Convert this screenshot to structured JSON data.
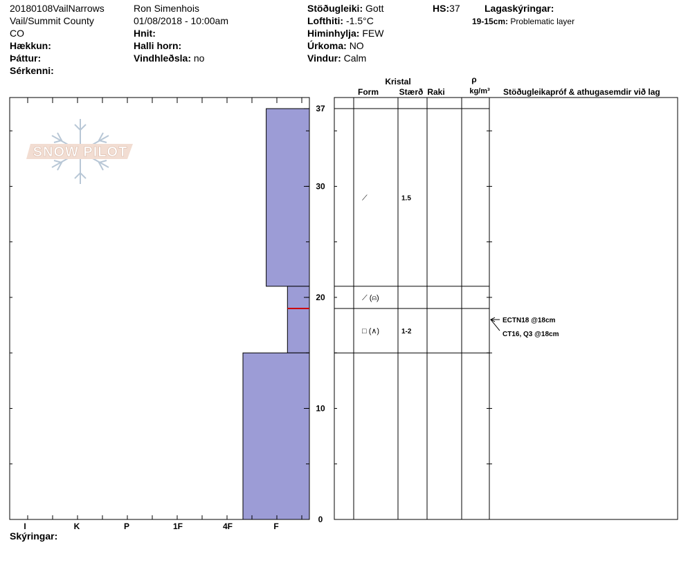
{
  "header": {
    "profile_name": "20180108VailNarrows",
    "location": "Vail/Summit County",
    "state": "CO",
    "elevation_label": "Hækkun:",
    "aspect_label": "Þáttur:",
    "features_label": "Sérkenni:",
    "observer": "Ron Simenhois",
    "datetime": "01/08/2018 - 10:00am",
    "coords_label": "Hnit:",
    "slope_label": "Halli horn:",
    "wind_loading_label": "Vindhleðsla:",
    "wind_loading_value": "no",
    "stability_label": "Stöðugleiki:",
    "stability_value": "Gott",
    "air_temp_label": "Lofthiti:",
    "air_temp_value": "-1.5°C",
    "sky_label": "Himinhylja:",
    "sky_value": "FEW",
    "precip_label": "Úrkoma:",
    "precip_value": "NO",
    "wind_label": "Vindur:",
    "wind_value": "Calm",
    "hs_label": "HS:",
    "hs_value": "37",
    "layer_notes_label": "Lagaskýringar:",
    "layer_note_range": "19-15cm:",
    "layer_note_text": "Problematic layer"
  },
  "logo": {
    "text": "SNOW PILOT"
  },
  "footer": {
    "notes_label": "Skýringar:"
  },
  "table_headers": {
    "crystal": "Kristal",
    "form": "Form",
    "size": "Stærð",
    "moisture": "Raki",
    "density_symbol": "ρ",
    "density_unit": "kg/m³",
    "tests": "Stöðugleikapróf & athugasemdir við lag"
  },
  "chart_data": {
    "type": "bar",
    "orientation": "horizontal",
    "description": "hand hardness profile by snow height",
    "xcategories": [
      "I",
      "K",
      "P",
      "1F",
      "4F",
      "F"
    ],
    "ylim": [
      0,
      37
    ],
    "y_ticks": [
      0,
      10,
      20,
      30,
      37
    ],
    "fill_color": "#9c9cd6",
    "weak_layer_color": "#cc0000",
    "layers": [
      {
        "top": 37,
        "bottom": 21,
        "hardness_index": 0.65
      },
      {
        "top": 21,
        "bottom": 15,
        "hardness_index": 0.33
      },
      {
        "top": 15,
        "bottom": 0,
        "hardness_index": 1.0
      }
    ],
    "weak_layer_height": 19,
    "boundaries": [
      37,
      21,
      19,
      15
    ],
    "crystals": [
      {
        "height": 29,
        "form": "⟋",
        "size": "1.5"
      },
      {
        "height": 20,
        "form": "⟋ (⍝)",
        "size": ""
      },
      {
        "height": 17,
        "form": "□ (∧)",
        "size": "1-2"
      }
    ],
    "tests": [
      {
        "height": 18,
        "label": "ECTN18 @18cm"
      },
      {
        "height": 18,
        "label": "CT16, Q3 @18cm"
      }
    ]
  }
}
